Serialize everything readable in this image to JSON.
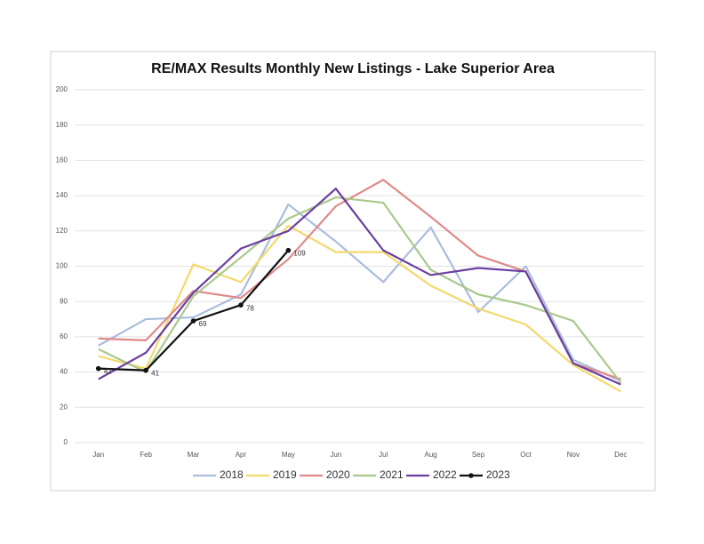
{
  "chart_data": {
    "type": "line",
    "title": "RE/MAX Results Monthly New Listings - Lake Superior Area",
    "categories": [
      "Jan",
      "Feb",
      "Mar",
      "Apr",
      "May",
      "Jun",
      "Jul",
      "Aug",
      "Sep",
      "Oct",
      "Nov",
      "Dec"
    ],
    "ylim": [
      0,
      200
    ],
    "yticks": [
      0,
      20,
      40,
      60,
      80,
      100,
      120,
      140,
      160,
      180,
      200
    ],
    "grid": true,
    "legend": "bottom",
    "series": [
      {
        "name": "2018",
        "color": "#a9bddd",
        "values": [
          55,
          70,
          71,
          84,
          135,
          114,
          91,
          122,
          74,
          100,
          47,
          35
        ]
      },
      {
        "name": "2019",
        "color": "#f3d96b",
        "values": [
          49,
          42,
          101,
          91,
          123,
          108,
          108,
          89,
          76,
          67,
          44,
          29
        ]
      },
      {
        "name": "2020",
        "color": "#e08a8a",
        "values": [
          59,
          58,
          86,
          82,
          104,
          134,
          149,
          128,
          106,
          97,
          45,
          36
        ]
      },
      {
        "name": "2021",
        "color": "#a9c98a",
        "values": [
          53,
          40,
          83,
          105,
          127,
          139,
          136,
          98,
          84,
          78,
          69,
          34
        ]
      },
      {
        "name": "2022",
        "color": "#6a3fa0",
        "values": [
          36,
          51,
          85,
          110,
          120,
          144,
          109,
          95,
          99,
          97,
          45,
          33
        ]
      },
      {
        "name": "2023",
        "color": "#111111",
        "markers": true,
        "data_labels": true,
        "values": [
          42,
          41,
          69,
          78,
          109,
          null,
          null,
          null,
          null,
          null,
          null,
          null
        ]
      }
    ]
  }
}
